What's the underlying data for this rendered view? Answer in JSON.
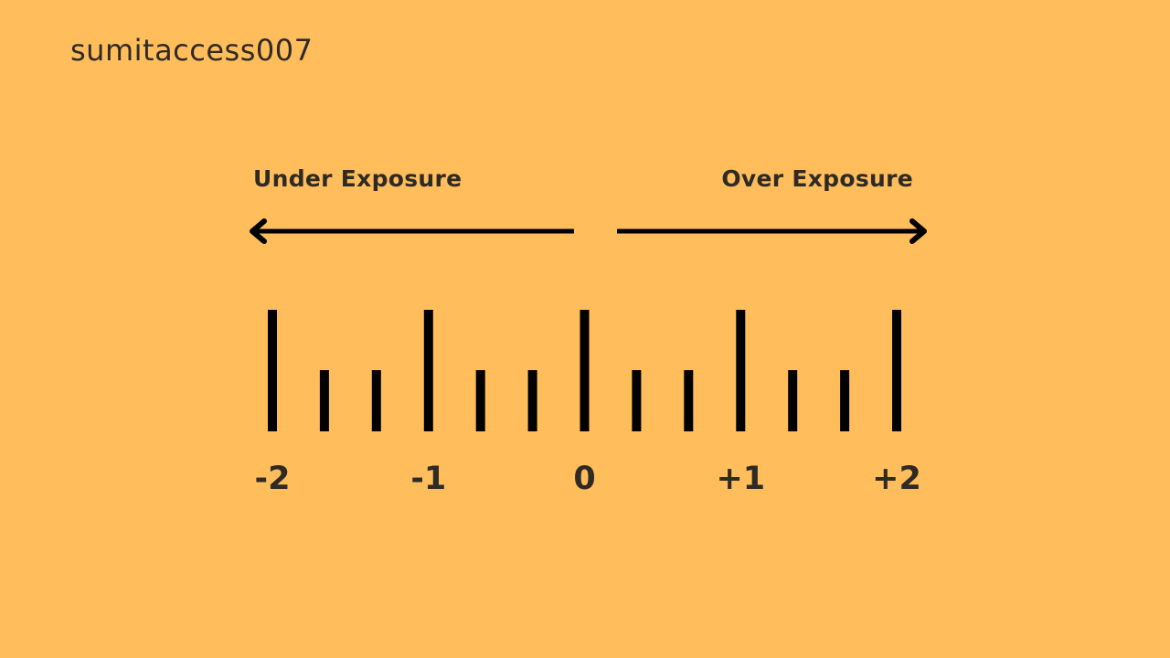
{
  "colors": {
    "background": "#FFBD5C",
    "ink": "#000000",
    "text": "#2F2A24"
  },
  "watermark": "sumitaccess007",
  "headings": {
    "under": "Under Exposure",
    "over": "Over Exposure"
  },
  "scale": {
    "min": -2,
    "max": 2,
    "step": 0.33333,
    "labels": [
      {
        "value": -2,
        "text": "-2"
      },
      {
        "value": -1,
        "text": "-1"
      },
      {
        "value": 0,
        "text": "0"
      },
      {
        "value": 1,
        "text": "+1"
      },
      {
        "value": 2,
        "text": "+2"
      }
    ]
  },
  "arrows": [
    {
      "name": "under-exposure-arrow",
      "direction": "left"
    },
    {
      "name": "over-exposure-arrow",
      "direction": "right"
    }
  ]
}
